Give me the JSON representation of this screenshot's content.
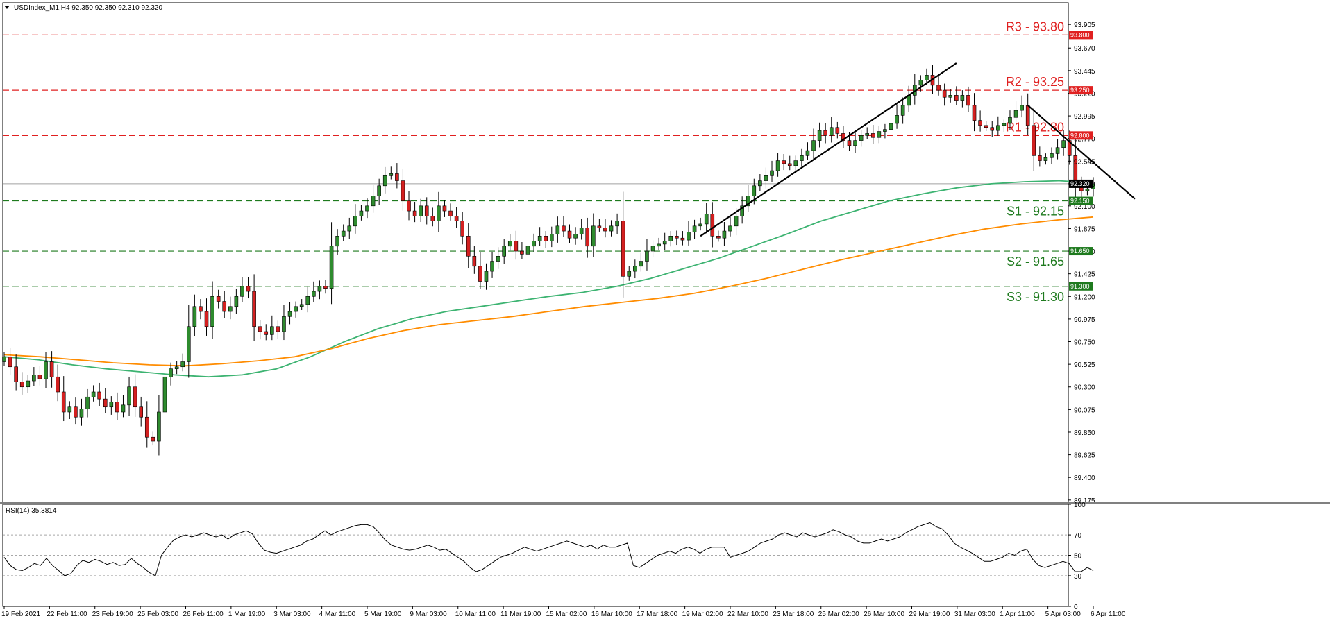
{
  "window": {
    "symbol_info": "USDIndex_M1,H4  92.350 92.350 92.310 92.320"
  },
  "colors": {
    "resistance": "#e02020",
    "support": "#1e7a1e",
    "ma_fast": "#3cb371",
    "ma_slow": "#ff8c00",
    "bull_candle": "#2e8b2e",
    "bear_candle": "#d42020",
    "rsi": "#000000",
    "trendline": "#000000",
    "current_price": "#000000"
  },
  "chart_data": [
    {
      "type": "candlestick",
      "title": "USDIndex_M1,H4",
      "ylim": [
        89.16,
        94.12
      ],
      "yticks": [
        "93.905",
        "93.670",
        "93.445",
        "93.220",
        "92.995",
        "92.770",
        "92.545",
        "92.320",
        "92.100",
        "91.875",
        "91.650",
        "91.425",
        "91.200",
        "90.975",
        "90.750",
        "90.525",
        "90.300",
        "90.075",
        "89.850",
        "89.625",
        "89.400",
        "89.175"
      ],
      "xtick_labels": [
        "19 Feb 2021",
        "22 Feb 11:00",
        "23 Feb 19:00",
        "25 Feb 03:00",
        "26 Feb 11:00",
        "1 Mar 19:00",
        "3 Mar 03:00",
        "4 Mar 11:00",
        "5 Mar 19:00",
        "9 Mar 03:00",
        "10 Mar 11:00",
        "11 Mar 19:00",
        "15 Mar 02:00",
        "16 Mar 10:00",
        "17 Mar 18:00",
        "19 Mar 02:00",
        "22 Mar 10:00",
        "23 Mar 18:00",
        "25 Mar 02:00",
        "26 Mar 10:00",
        "29 Mar 19:00",
        "31 Mar 03:00",
        "1 Apr 11:00",
        "5 Apr 03:00",
        "6 Apr 11:00"
      ],
      "current_price": {
        "value": 92.32,
        "label": "92.320"
      },
      "levels": [
        {
          "name": "R3",
          "value": 93.8,
          "label": "R3 - 93.80",
          "box": "93.800",
          "kind": "resistance"
        },
        {
          "name": "R2",
          "value": 93.25,
          "label": "R2 - 93.25",
          "box": "93.250",
          "kind": "resistance"
        },
        {
          "name": "R1",
          "value": 92.8,
          "label": "R1 - 92.80",
          "box": "92.800",
          "kind": "resistance"
        },
        {
          "name": "S1",
          "value": 92.15,
          "label": "S1 - 92.15",
          "box": "92.150",
          "kind": "support"
        },
        {
          "name": "S2",
          "value": 91.65,
          "label": "S2 - 91.65",
          "box": "91.650",
          "kind": "support"
        },
        {
          "name": "S3",
          "value": 91.3,
          "label": "S3 - 91.30",
          "box": "91.300",
          "kind": "support"
        }
      ],
      "series": [
        {
          "name": "Price",
          "values": [
            90.6,
            90.5,
            90.35,
            90.3,
            90.36,
            90.42,
            90.38,
            90.55,
            90.4,
            90.25,
            90.05,
            90.1,
            90.0,
            90.08,
            90.2,
            90.25,
            90.18,
            90.1,
            90.15,
            90.05,
            90.12,
            90.3,
            90.1,
            90.0,
            89.8,
            89.76,
            90.05,
            90.4,
            90.48,
            90.5,
            90.55,
            90.9,
            91.1,
            91.05,
            90.9,
            91.2,
            91.15,
            91.05,
            91.1,
            91.2,
            91.3,
            91.25,
            90.9,
            90.85,
            90.82,
            90.9,
            90.85,
            91.0,
            91.05,
            91.1,
            91.12,
            91.2,
            91.25,
            91.3,
            91.28,
            91.7,
            91.8,
            91.85,
            91.9,
            92.0,
            92.05,
            92.1,
            92.2,
            92.3,
            92.4,
            92.42,
            92.35,
            92.15,
            92.05,
            92.0,
            92.1,
            92.0,
            91.95,
            92.1,
            92.05,
            92.0,
            91.95,
            91.8,
            91.6,
            91.5,
            91.35,
            91.45,
            91.55,
            91.6,
            91.7,
            91.75,
            91.65,
            91.62,
            91.7,
            91.75,
            91.8,
            91.75,
            91.82,
            91.9,
            91.85,
            91.78,
            91.82,
            91.88,
            91.7,
            91.9,
            91.88,
            91.85,
            91.9,
            91.95,
            91.4,
            91.45,
            91.5,
            91.55,
            91.65,
            91.7,
            91.72,
            91.75,
            91.8,
            91.78,
            91.76,
            91.84,
            91.9,
            91.92,
            92.02,
            91.8,
            91.78,
            91.85,
            91.9,
            92.0,
            92.1,
            92.2,
            92.3,
            92.35,
            92.4,
            92.45,
            92.55,
            92.52,
            92.5,
            92.55,
            92.6,
            92.65,
            92.75,
            92.85,
            92.8,
            92.88,
            92.82,
            92.75,
            92.7,
            92.75,
            92.8,
            92.82,
            92.78,
            92.84,
            92.86,
            92.92,
            93.0,
            93.1,
            93.2,
            93.3,
            93.35,
            93.4,
            93.3,
            93.25,
            93.18,
            93.2,
            93.15,
            93.2,
            93.1,
            92.95,
            92.9,
            92.88,
            92.85,
            92.9,
            92.92,
            92.98,
            93.05,
            93.1,
            92.9,
            92.6,
            92.55,
            92.58,
            92.62,
            92.68,
            92.75,
            92.6,
            92.3,
            92.25,
            92.27,
            92.32
          ]
        },
        {
          "name": "MA fast",
          "values": [
            90.6,
            90.57,
            90.52,
            90.48,
            90.45,
            90.42,
            90.4,
            90.42,
            90.48,
            90.6,
            90.75,
            90.88,
            90.98,
            91.05,
            91.1,
            91.15,
            91.2,
            91.24,
            91.3,
            91.38,
            91.48,
            91.58,
            91.7,
            91.82,
            91.95,
            92.05,
            92.15,
            92.22,
            92.28,
            92.32,
            92.34,
            92.35,
            92.33
          ]
        },
        {
          "name": "MA slow",
          "values": [
            90.62,
            90.6,
            90.57,
            90.54,
            90.52,
            90.51,
            90.53,
            90.56,
            90.6,
            90.68,
            90.78,
            90.86,
            90.92,
            90.96,
            91.0,
            91.05,
            91.1,
            91.14,
            91.18,
            91.23,
            91.3,
            91.38,
            91.47,
            91.56,
            91.64,
            91.72,
            91.8,
            91.87,
            91.92,
            91.96,
            91.99
          ]
        }
      ],
      "trendlines": [
        {
          "name": "uptrend",
          "from": [
            117,
            91.8
          ],
          "to": [
            160,
            93.52
          ]
        },
        {
          "name": "downtrend",
          "from": [
            172,
            93.1
          ],
          "to": [
            190,
            92.17
          ]
        }
      ]
    },
    {
      "type": "line",
      "title": "RSI(14) 35.3814",
      "ylim": [
        0,
        100
      ],
      "yticks": [
        "100",
        "70",
        "50",
        "30",
        "0"
      ],
      "series": [
        {
          "name": "RSI(14)",
          "values": [
            48,
            40,
            36,
            35,
            38,
            42,
            40,
            47,
            40,
            35,
            30,
            32,
            40,
            45,
            43,
            46,
            44,
            41,
            43,
            40,
            41,
            47,
            42,
            38,
            33,
            30,
            50,
            58,
            65,
            68,
            70,
            68,
            70,
            72,
            70,
            68,
            70,
            66,
            70,
            72,
            74,
            71,
            62,
            55,
            53,
            52,
            54,
            56,
            58,
            60,
            64,
            66,
            70,
            74,
            70,
            73,
            75,
            77,
            79,
            80,
            80,
            78,
            72,
            65,
            60,
            58,
            56,
            55,
            56,
            58,
            60,
            58,
            55,
            56,
            52,
            48,
            44,
            38,
            34,
            36,
            40,
            44,
            48,
            50,
            52,
            55,
            58,
            56,
            54,
            56,
            58,
            60,
            62,
            64,
            62,
            60,
            58,
            60,
            56,
            60,
            58,
            58,
            60,
            62,
            40,
            38,
            42,
            46,
            50,
            52,
            54,
            52,
            56,
            58,
            56,
            52,
            56,
            58,
            58,
            58,
            48,
            50,
            52,
            54,
            58,
            62,
            64,
            66,
            70,
            72,
            70,
            68,
            72,
            70,
            68,
            70,
            72,
            75,
            73,
            70,
            68,
            64,
            62,
            62,
            64,
            66,
            64,
            66,
            68,
            72,
            75,
            78,
            80,
            82,
            78,
            76,
            70,
            62,
            58,
            55,
            52,
            48,
            44,
            44,
            46,
            48,
            52,
            50,
            54,
            56,
            46,
            40,
            38,
            40,
            42,
            44,
            42,
            34,
            34,
            38,
            35
          ]
        }
      ]
    }
  ]
}
